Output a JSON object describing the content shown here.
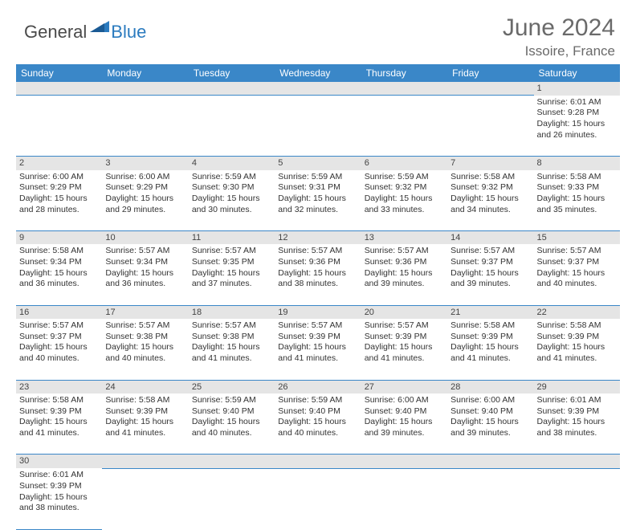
{
  "logo": {
    "general": "General",
    "blue": "Blue"
  },
  "title": "June 2024",
  "location": "Issoire, France",
  "colors": {
    "header_bg": "#3a87c8",
    "header_fg": "#ffffff",
    "daynum_bg": "#e5e5e5",
    "cell_border": "#3a87c8",
    "logo_gray": "#4a4a4a",
    "logo_blue": "#2b7bbf",
    "title_color": "#6a6a6a"
  },
  "weekdays": [
    "Sunday",
    "Monday",
    "Tuesday",
    "Wednesday",
    "Thursday",
    "Friday",
    "Saturday"
  ],
  "weeks": [
    [
      null,
      null,
      null,
      null,
      null,
      null,
      {
        "n": "1",
        "sunrise": "Sunrise: 6:01 AM",
        "sunset": "Sunset: 9:28 PM",
        "day1": "Daylight: 15 hours",
        "day2": "and 26 minutes."
      }
    ],
    [
      {
        "n": "2",
        "sunrise": "Sunrise: 6:00 AM",
        "sunset": "Sunset: 9:29 PM",
        "day1": "Daylight: 15 hours",
        "day2": "and 28 minutes."
      },
      {
        "n": "3",
        "sunrise": "Sunrise: 6:00 AM",
        "sunset": "Sunset: 9:29 PM",
        "day1": "Daylight: 15 hours",
        "day2": "and 29 minutes."
      },
      {
        "n": "4",
        "sunrise": "Sunrise: 5:59 AM",
        "sunset": "Sunset: 9:30 PM",
        "day1": "Daylight: 15 hours",
        "day2": "and 30 minutes."
      },
      {
        "n": "5",
        "sunrise": "Sunrise: 5:59 AM",
        "sunset": "Sunset: 9:31 PM",
        "day1": "Daylight: 15 hours",
        "day2": "and 32 minutes."
      },
      {
        "n": "6",
        "sunrise": "Sunrise: 5:59 AM",
        "sunset": "Sunset: 9:32 PM",
        "day1": "Daylight: 15 hours",
        "day2": "and 33 minutes."
      },
      {
        "n": "7",
        "sunrise": "Sunrise: 5:58 AM",
        "sunset": "Sunset: 9:32 PM",
        "day1": "Daylight: 15 hours",
        "day2": "and 34 minutes."
      },
      {
        "n": "8",
        "sunrise": "Sunrise: 5:58 AM",
        "sunset": "Sunset: 9:33 PM",
        "day1": "Daylight: 15 hours",
        "day2": "and 35 minutes."
      }
    ],
    [
      {
        "n": "9",
        "sunrise": "Sunrise: 5:58 AM",
        "sunset": "Sunset: 9:34 PM",
        "day1": "Daylight: 15 hours",
        "day2": "and 36 minutes."
      },
      {
        "n": "10",
        "sunrise": "Sunrise: 5:57 AM",
        "sunset": "Sunset: 9:34 PM",
        "day1": "Daylight: 15 hours",
        "day2": "and 36 minutes."
      },
      {
        "n": "11",
        "sunrise": "Sunrise: 5:57 AM",
        "sunset": "Sunset: 9:35 PM",
        "day1": "Daylight: 15 hours",
        "day2": "and 37 minutes."
      },
      {
        "n": "12",
        "sunrise": "Sunrise: 5:57 AM",
        "sunset": "Sunset: 9:36 PM",
        "day1": "Daylight: 15 hours",
        "day2": "and 38 minutes."
      },
      {
        "n": "13",
        "sunrise": "Sunrise: 5:57 AM",
        "sunset": "Sunset: 9:36 PM",
        "day1": "Daylight: 15 hours",
        "day2": "and 39 minutes."
      },
      {
        "n": "14",
        "sunrise": "Sunrise: 5:57 AM",
        "sunset": "Sunset: 9:37 PM",
        "day1": "Daylight: 15 hours",
        "day2": "and 39 minutes."
      },
      {
        "n": "15",
        "sunrise": "Sunrise: 5:57 AM",
        "sunset": "Sunset: 9:37 PM",
        "day1": "Daylight: 15 hours",
        "day2": "and 40 minutes."
      }
    ],
    [
      {
        "n": "16",
        "sunrise": "Sunrise: 5:57 AM",
        "sunset": "Sunset: 9:37 PM",
        "day1": "Daylight: 15 hours",
        "day2": "and 40 minutes."
      },
      {
        "n": "17",
        "sunrise": "Sunrise: 5:57 AM",
        "sunset": "Sunset: 9:38 PM",
        "day1": "Daylight: 15 hours",
        "day2": "and 40 minutes."
      },
      {
        "n": "18",
        "sunrise": "Sunrise: 5:57 AM",
        "sunset": "Sunset: 9:38 PM",
        "day1": "Daylight: 15 hours",
        "day2": "and 41 minutes."
      },
      {
        "n": "19",
        "sunrise": "Sunrise: 5:57 AM",
        "sunset": "Sunset: 9:39 PM",
        "day1": "Daylight: 15 hours",
        "day2": "and 41 minutes."
      },
      {
        "n": "20",
        "sunrise": "Sunrise: 5:57 AM",
        "sunset": "Sunset: 9:39 PM",
        "day1": "Daylight: 15 hours",
        "day2": "and 41 minutes."
      },
      {
        "n": "21",
        "sunrise": "Sunrise: 5:58 AM",
        "sunset": "Sunset: 9:39 PM",
        "day1": "Daylight: 15 hours",
        "day2": "and 41 minutes."
      },
      {
        "n": "22",
        "sunrise": "Sunrise: 5:58 AM",
        "sunset": "Sunset: 9:39 PM",
        "day1": "Daylight: 15 hours",
        "day2": "and 41 minutes."
      }
    ],
    [
      {
        "n": "23",
        "sunrise": "Sunrise: 5:58 AM",
        "sunset": "Sunset: 9:39 PM",
        "day1": "Daylight: 15 hours",
        "day2": "and 41 minutes."
      },
      {
        "n": "24",
        "sunrise": "Sunrise: 5:58 AM",
        "sunset": "Sunset: 9:39 PM",
        "day1": "Daylight: 15 hours",
        "day2": "and 41 minutes."
      },
      {
        "n": "25",
        "sunrise": "Sunrise: 5:59 AM",
        "sunset": "Sunset: 9:40 PM",
        "day1": "Daylight: 15 hours",
        "day2": "and 40 minutes."
      },
      {
        "n": "26",
        "sunrise": "Sunrise: 5:59 AM",
        "sunset": "Sunset: 9:40 PM",
        "day1": "Daylight: 15 hours",
        "day2": "and 40 minutes."
      },
      {
        "n": "27",
        "sunrise": "Sunrise: 6:00 AM",
        "sunset": "Sunset: 9:40 PM",
        "day1": "Daylight: 15 hours",
        "day2": "and 39 minutes."
      },
      {
        "n": "28",
        "sunrise": "Sunrise: 6:00 AM",
        "sunset": "Sunset: 9:40 PM",
        "day1": "Daylight: 15 hours",
        "day2": "and 39 minutes."
      },
      {
        "n": "29",
        "sunrise": "Sunrise: 6:01 AM",
        "sunset": "Sunset: 9:39 PM",
        "day1": "Daylight: 15 hours",
        "day2": "and 38 minutes."
      }
    ],
    [
      {
        "n": "30",
        "sunrise": "Sunrise: 6:01 AM",
        "sunset": "Sunset: 9:39 PM",
        "day1": "Daylight: 15 hours",
        "day2": "and 38 minutes."
      },
      null,
      null,
      null,
      null,
      null,
      null
    ]
  ]
}
